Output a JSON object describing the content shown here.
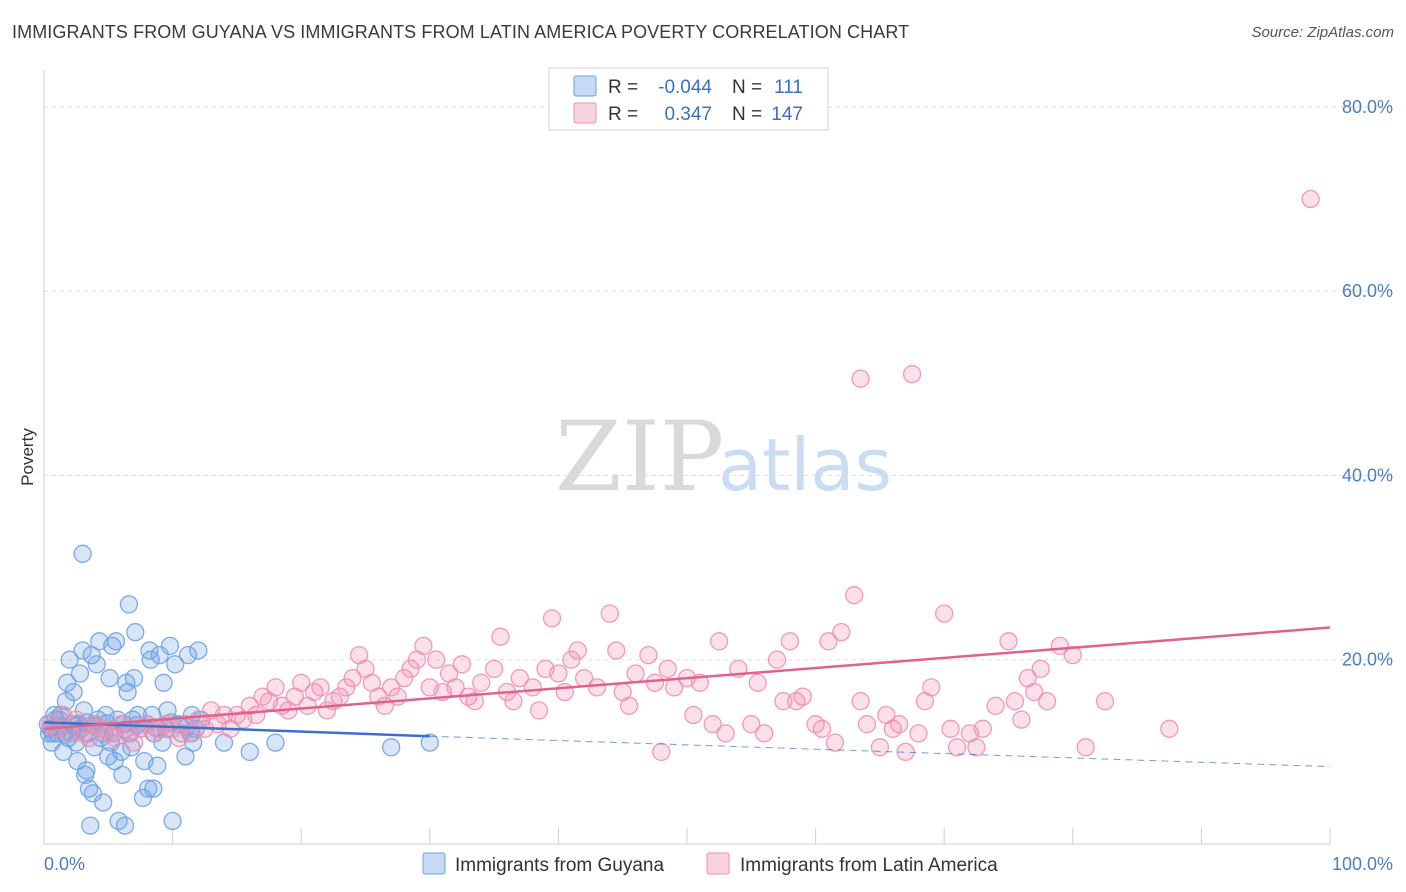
{
  "header": {
    "title": "IMMIGRANTS FROM GUYANA VS IMMIGRANTS FROM LATIN AMERICA POVERTY CORRELATION CHART",
    "source": "Source: ZipAtlas.com"
  },
  "watermark": {
    "zip": "ZIP",
    "atlas": "atlas"
  },
  "legend": {
    "r_label": "R =",
    "n_label": "N =",
    "rows": [
      {
        "r": "-0.044",
        "n": "111",
        "color": "#6fa2e4"
      },
      {
        "r": "0.347",
        "n": "147",
        "color": "#f08fb0"
      }
    ]
  },
  "chart_data": {
    "type": "scatter",
    "title": "IMMIGRANTS FROM GUYANA VS IMMIGRANTS FROM LATIN AMERICA POVERTY CORRELATION CHART",
    "xlabel": "",
    "ylabel": "Poverty",
    "xlim": [
      0,
      100
    ],
    "ylim": [
      0,
      84
    ],
    "x_tick_labels": {
      "min": "0.0%",
      "max": "100.0%"
    },
    "y_ticks": [
      20,
      40,
      60,
      80
    ],
    "y_tick_labels": [
      "20.0%",
      "40.0%",
      "60.0%",
      "80.0%"
    ],
    "grid": true,
    "series": [
      {
        "name": "Immigrants from Guyana",
        "color": "#6fa2e4",
        "line_color": "#3b72c8",
        "trend": {
          "x0": 0,
          "y0": 13.2,
          "x1": 30,
          "y1": 11.7,
          "dash_to_x": 100,
          "dash_to_y": 8.4
        },
        "points": [
          [
            0.3,
            13
          ],
          [
            0.5,
            12.5
          ],
          [
            0.6,
            11
          ],
          [
            0.8,
            14
          ],
          [
            1.0,
            12
          ],
          [
            1.2,
            13.5
          ],
          [
            1.4,
            12.8
          ],
          [
            1.5,
            10
          ],
          [
            1.7,
            15.5
          ],
          [
            1.8,
            17.5
          ],
          [
            2.0,
            20
          ],
          [
            2.1,
            12
          ],
          [
            2.3,
            16.5
          ],
          [
            2.5,
            11
          ],
          [
            2.6,
            9
          ],
          [
            2.7,
            13
          ],
          [
            2.8,
            18.5
          ],
          [
            3.0,
            21
          ],
          [
            3.1,
            14.5
          ],
          [
            3.2,
            7.5
          ],
          [
            3.3,
            8
          ],
          [
            3.4,
            12
          ],
          [
            3.5,
            6
          ],
          [
            3.6,
            2
          ],
          [
            3.7,
            20.5
          ],
          [
            3.8,
            5.5
          ],
          [
            3.9,
            10.5
          ],
          [
            4.0,
            13
          ],
          [
            4.1,
            19.5
          ],
          [
            4.3,
            22
          ],
          [
            4.4,
            11.5
          ],
          [
            4.5,
            12.5
          ],
          [
            4.6,
            4.5
          ],
          [
            4.8,
            14
          ],
          [
            5.0,
            9.5
          ],
          [
            5.1,
            18
          ],
          [
            5.3,
            21.5
          ],
          [
            5.4,
            12
          ],
          [
            5.6,
            22
          ],
          [
            5.7,
            13.5
          ],
          [
            5.8,
            2.5
          ],
          [
            6.0,
            10
          ],
          [
            6.1,
            7.5
          ],
          [
            6.2,
            13
          ],
          [
            6.3,
            2
          ],
          [
            6.4,
            17.5
          ],
          [
            6.5,
            16.5
          ],
          [
            6.6,
            26
          ],
          [
            6.7,
            12
          ],
          [
            6.8,
            10.5
          ],
          [
            7.0,
            18
          ],
          [
            7.1,
            23
          ],
          [
            7.3,
            14
          ],
          [
            7.5,
            12.5
          ],
          [
            7.7,
            5
          ],
          [
            7.8,
            9
          ],
          [
            8.0,
            13
          ],
          [
            8.1,
            6
          ],
          [
            8.2,
            21
          ],
          [
            8.3,
            20
          ],
          [
            8.4,
            14
          ],
          [
            8.5,
            6
          ],
          [
            8.6,
            12
          ],
          [
            8.8,
            8.5
          ],
          [
            9.0,
            20.5
          ],
          [
            9.2,
            11
          ],
          [
            9.3,
            17.5
          ],
          [
            9.5,
            12.5
          ],
          [
            9.6,
            14.5
          ],
          [
            9.8,
            21.5
          ],
          [
            10.0,
            2.5
          ],
          [
            10.2,
            19.5
          ],
          [
            10.5,
            13
          ],
          [
            10.7,
            12
          ],
          [
            11.0,
            9.5
          ],
          [
            11.2,
            20.5
          ],
          [
            11.4,
            12
          ],
          [
            11.5,
            14
          ],
          [
            11.6,
            11
          ],
          [
            11.8,
            12.5
          ],
          [
            12.0,
            21
          ],
          [
            12.2,
            13.5
          ],
          [
            1.6,
            12
          ],
          [
            2.2,
            13
          ],
          [
            2.9,
            12.5
          ],
          [
            1.9,
            11.5
          ],
          [
            4.2,
            13.5
          ],
          [
            4.7,
            12
          ],
          [
            3.0,
            31.5
          ],
          [
            5.2,
            11
          ],
          [
            5.5,
            9
          ],
          [
            6.9,
            13.5
          ],
          [
            14.0,
            11
          ],
          [
            16.0,
            10
          ],
          [
            18.0,
            11
          ],
          [
            27.0,
            10.5
          ],
          [
            30.0,
            11
          ],
          [
            1.1,
            12.5
          ],
          [
            0.9,
            13.5
          ],
          [
            0.7,
            12
          ],
          [
            1.3,
            14
          ],
          [
            2.4,
            12.8
          ],
          [
            3.3,
            13.2
          ],
          [
            0.4,
            12
          ],
          [
            2.6,
            12.3
          ],
          [
            3.9,
            12.8
          ],
          [
            4.9,
            13.1
          ],
          [
            6.3,
            12.4
          ],
          [
            7.2,
            12.9
          ],
          [
            8.7,
            12.6
          ],
          [
            9.9,
            13.2
          ],
          [
            11.1,
            12.7
          ]
        ]
      },
      {
        "name": "Immigrants from Latin America",
        "color": "#f08fb0",
        "line_color": "#e0628c",
        "trend": {
          "x0": 0,
          "y0": 12.5,
          "x1": 100,
          "y1": 23.5
        },
        "points": [
          [
            0.5,
            13
          ],
          [
            1.0,
            12.5
          ],
          [
            1.5,
            14
          ],
          [
            2.0,
            12
          ],
          [
            2.5,
            13.5
          ],
          [
            3.0,
            12
          ],
          [
            3.5,
            11.5
          ],
          [
            4.0,
            13
          ],
          [
            4.5,
            12.5
          ],
          [
            5.0,
            12
          ],
          [
            5.5,
            11.5
          ],
          [
            6.0,
            13
          ],
          [
            6.5,
            12
          ],
          [
            7.0,
            11
          ],
          [
            7.5,
            12.5
          ],
          [
            8.0,
            13
          ],
          [
            8.5,
            12
          ],
          [
            9.0,
            12.5
          ],
          [
            9.5,
            13
          ],
          [
            10.0,
            12.5
          ],
          [
            10.5,
            11.5
          ],
          [
            11.0,
            13
          ],
          [
            11.5,
            12
          ],
          [
            12.0,
            13.5
          ],
          [
            12.5,
            12.5
          ],
          [
            13.0,
            14.5
          ],
          [
            13.5,
            13
          ],
          [
            14.0,
            14
          ],
          [
            14.5,
            12.5
          ],
          [
            15.0,
            14
          ],
          [
            15.5,
            13.5
          ],
          [
            16.0,
            15
          ],
          [
            16.5,
            14
          ],
          [
            17.0,
            16
          ],
          [
            17.5,
            15.5
          ],
          [
            18.0,
            17
          ],
          [
            18.5,
            15
          ],
          [
            19.0,
            14.5
          ],
          [
            19.5,
            16
          ],
          [
            20.0,
            17.5
          ],
          [
            20.5,
            15
          ],
          [
            21.0,
            16.5
          ],
          [
            21.5,
            17
          ],
          [
            22.0,
            14.5
          ],
          [
            22.5,
            15.5
          ],
          [
            23.0,
            16
          ],
          [
            23.5,
            17
          ],
          [
            24.0,
            18
          ],
          [
            24.5,
            20.5
          ],
          [
            25.0,
            19
          ],
          [
            25.5,
            17.5
          ],
          [
            26.0,
            16
          ],
          [
            26.5,
            15
          ],
          [
            27.0,
            17
          ],
          [
            27.5,
            16
          ],
          [
            28.0,
            18
          ],
          [
            28.5,
            19
          ],
          [
            29.0,
            20
          ],
          [
            29.5,
            21.5
          ],
          [
            30.0,
            17
          ],
          [
            30.5,
            20
          ],
          [
            31.0,
            16.5
          ],
          [
            31.5,
            18.5
          ],
          [
            32.0,
            17
          ],
          [
            32.5,
            19.5
          ],
          [
            33.0,
            16
          ],
          [
            33.5,
            15.5
          ],
          [
            34.0,
            17.5
          ],
          [
            35.0,
            19
          ],
          [
            35.5,
            22.5
          ],
          [
            36.0,
            16.5
          ],
          [
            36.5,
            15.5
          ],
          [
            37.0,
            18
          ],
          [
            38.0,
            17
          ],
          [
            38.5,
            14.5
          ],
          [
            39.0,
            19
          ],
          [
            39.5,
            24.5
          ],
          [
            40.0,
            18.5
          ],
          [
            40.5,
            16.5
          ],
          [
            41.0,
            20
          ],
          [
            41.5,
            21
          ],
          [
            42.0,
            18
          ],
          [
            43.0,
            17
          ],
          [
            44.0,
            25
          ],
          [
            44.5,
            21
          ],
          [
            45.0,
            16.5
          ],
          [
            45.5,
            15
          ],
          [
            46.0,
            18.5
          ],
          [
            47.0,
            20.5
          ],
          [
            47.5,
            17.5
          ],
          [
            48.0,
            10
          ],
          [
            48.5,
            19
          ],
          [
            49.0,
            17
          ],
          [
            50.0,
            18
          ],
          [
            50.5,
            14
          ],
          [
            51.0,
            17.5
          ],
          [
            52.0,
            13
          ],
          [
            52.5,
            22
          ],
          [
            53.0,
            12
          ],
          [
            54.0,
            19
          ],
          [
            55.0,
            13
          ],
          [
            55.5,
            17.5
          ],
          [
            56.0,
            12
          ],
          [
            57.0,
            20
          ],
          [
            57.5,
            15.5
          ],
          [
            58.0,
            22
          ],
          [
            58.5,
            15.5
          ],
          [
            59.0,
            16
          ],
          [
            60.0,
            13
          ],
          [
            60.5,
            12.5
          ],
          [
            61.0,
            22
          ],
          [
            61.5,
            11
          ],
          [
            62.0,
            23
          ],
          [
            63.0,
            27
          ],
          [
            63.5,
            15.5
          ],
          [
            64.0,
            13
          ],
          [
            65.0,
            10.5
          ],
          [
            65.5,
            14
          ],
          [
            66.0,
            12.5
          ],
          [
            66.5,
            13
          ],
          [
            67.0,
            10
          ],
          [
            68.0,
            12
          ],
          [
            68.5,
            15.5
          ],
          [
            69.0,
            17
          ],
          [
            70.0,
            25
          ],
          [
            70.5,
            12.5
          ],
          [
            71.0,
            10.5
          ],
          [
            72.0,
            12
          ],
          [
            73.0,
            12.5
          ],
          [
            74.0,
            15
          ],
          [
            75.0,
            22
          ],
          [
            75.5,
            15.5
          ],
          [
            76.0,
            13.5
          ],
          [
            77.0,
            16.5
          ],
          [
            77.5,
            19
          ],
          [
            78.0,
            15.5
          ],
          [
            79.0,
            21.5
          ],
          [
            80.0,
            20.5
          ],
          [
            81.0,
            10.5
          ],
          [
            82.5,
            15.5
          ],
          [
            63.5,
            50.5
          ],
          [
            67.5,
            51
          ],
          [
            98.5,
            70
          ],
          [
            87.5,
            12.5
          ],
          [
            72.5,
            10.5
          ],
          [
            76.5,
            18
          ]
        ]
      }
    ]
  },
  "bottom_legend": [
    {
      "label": "Immigrants from Guyana",
      "color": "#6fa2e4"
    },
    {
      "label": "Immigrants from Latin America",
      "color": "#f08fb0"
    }
  ]
}
